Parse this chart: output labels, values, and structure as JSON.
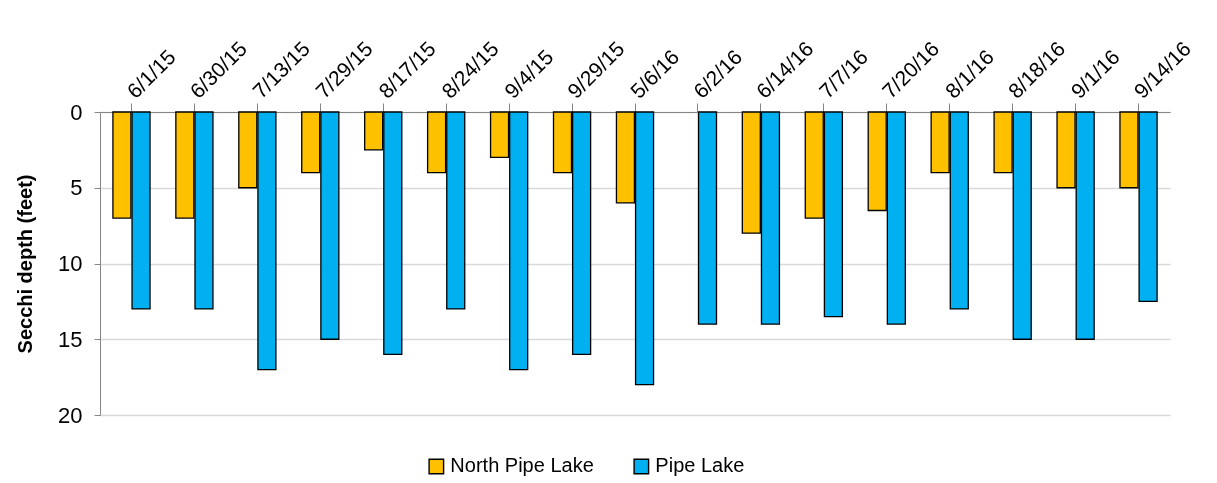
{
  "chart_data": {
    "type": "bar",
    "ylabel": "Secchi depth (feet)",
    "categories": [
      "6/1/15",
      "6/30/15",
      "7/13/15",
      "7/29/15",
      "8/17/15",
      "8/24/15",
      "9/4/15",
      "9/29/15",
      "5/6/16",
      "6/2/16",
      "6/14/16",
      "7/7/16",
      "7/20/16",
      "8/1/16",
      "8/18/16",
      "9/1/16",
      "9/14/16"
    ],
    "series": [
      {
        "name": "North Pipe Lake",
        "color": "#ffc000",
        "values": [
          7,
          7,
          5,
          4,
          2.5,
          4,
          3,
          4,
          6,
          null,
          8,
          7,
          6.5,
          4,
          4,
          5,
          5
        ]
      },
      {
        "name": "Pipe Lake",
        "color": "#00b0f0",
        "values": [
          13,
          13,
          17,
          15,
          16,
          13,
          17,
          16,
          18,
          14,
          14,
          13.5,
          14,
          13,
          15,
          15,
          12.5
        ]
      }
    ],
    "ylim": [
      20,
      0
    ],
    "yticks": [
      0,
      5,
      10,
      15,
      20
    ],
    "grid": "y",
    "legend": "bottom"
  }
}
